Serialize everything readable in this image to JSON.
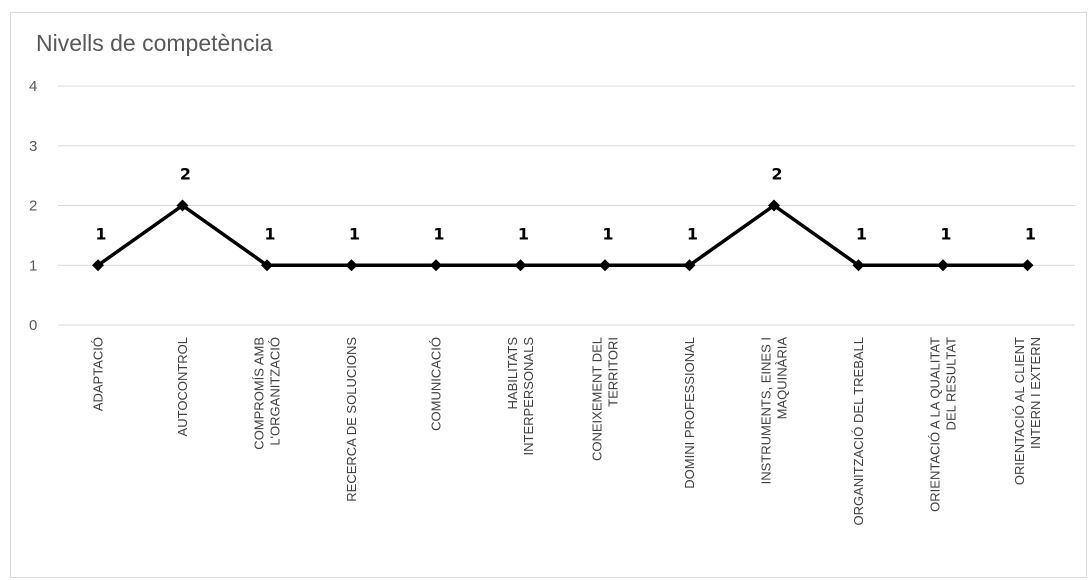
{
  "colors": {
    "line": "#000000",
    "grid": "#d9d9d9",
    "border": "#d9d9d9",
    "text": "#595959"
  },
  "chart_data": {
    "type": "line",
    "title": "Nivells de competència",
    "xlabel": "",
    "ylabel": "",
    "ylim": [
      0,
      4
    ],
    "yticks": [
      "0",
      "1",
      "2",
      "3",
      "4"
    ],
    "grid": true,
    "legend": "none",
    "categories": [
      [
        "ADAPTACIÓ"
      ],
      [
        "AUTOCONTROL"
      ],
      [
        "COMPROMÍS AMB",
        "L'ORGANITZACIÓ"
      ],
      [
        "RECERCA DE SOLUCIONS"
      ],
      [
        "COMUNICACIÓ"
      ],
      [
        "HABILITATS",
        "INTERPERSONALS"
      ],
      [
        "CONEIXEMENT DEL",
        "TERRITORI"
      ],
      [
        "DOMINI PROFESSIONAL"
      ],
      [
        "INSTRUMENTS,  EINES I",
        "MAQUINÀRIA"
      ],
      [
        "ORGANITZACIÓ DEL TREBALL"
      ],
      [
        "ORIENTACIÓ A LA QUALITAT",
        "DEL RESULTAT"
      ],
      [
        "ORIENTACIÓ AL CLIENT",
        "INTERN I EXTERN"
      ]
    ],
    "series": [
      {
        "values": [
          1,
          2,
          1,
          1,
          1,
          1,
          1,
          1,
          2,
          1,
          1,
          1
        ],
        "color": "#000000",
        "marker": "diamond"
      }
    ],
    "data_labels": [
      "1",
      "2",
      "1",
      "1",
      "1",
      "1",
      "1",
      "1",
      "2",
      "1",
      "1",
      "1"
    ]
  }
}
